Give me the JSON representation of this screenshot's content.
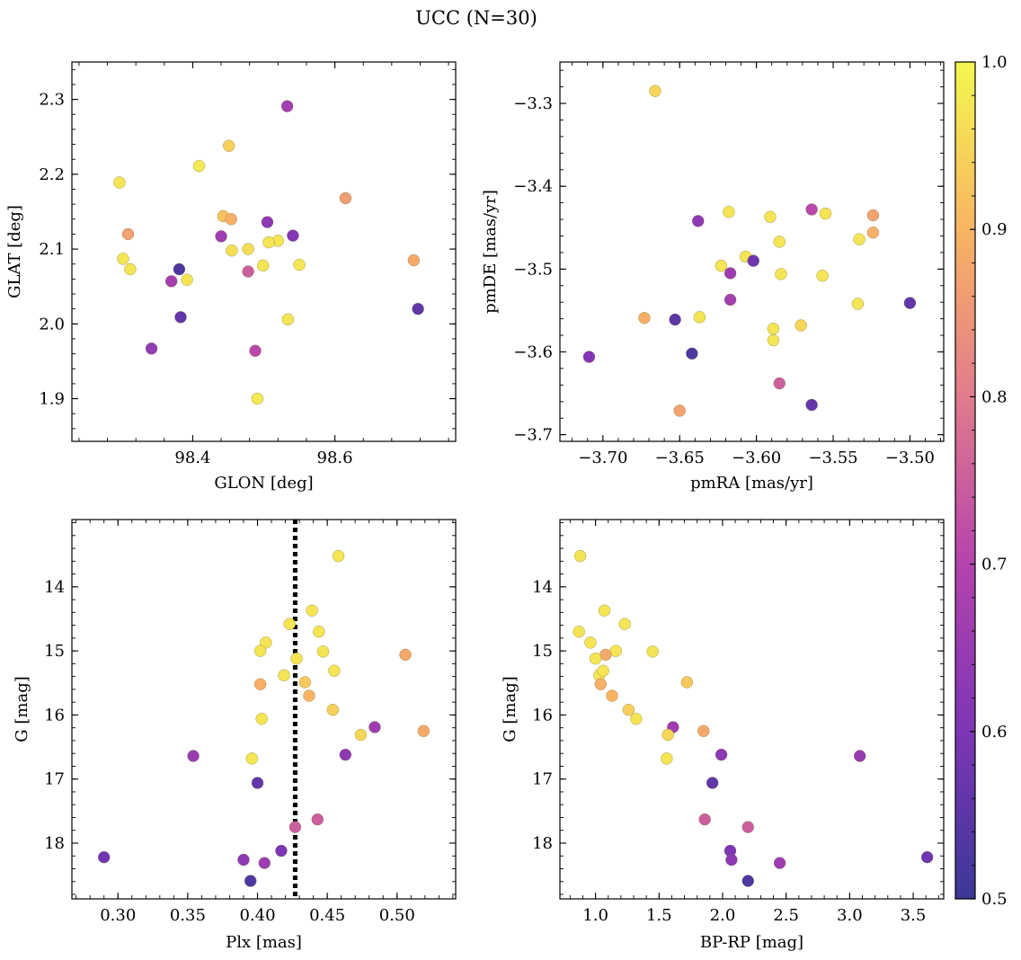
{
  "chart_data": [
    {
      "type": "scatter",
      "title": "UCC (N=30)",
      "xlabel": "GLON [deg]",
      "ylabel": "GLAT [deg]",
      "xlim": [
        98.23,
        98.77
      ],
      "ylim": [
        1.843,
        2.35
      ],
      "xticks": [
        98.4,
        98.6
      ],
      "xtick_labels": [
        "98.4",
        "98.6"
      ],
      "yticks": [
        1.9,
        2.0,
        2.1,
        2.2,
        2.3
      ],
      "ytick_labels": [
        "1.9",
        "2.0",
        "2.1",
        "2.2",
        "2.3"
      ],
      "x": [
        98.533,
        98.297,
        98.451,
        98.409,
        98.615,
        98.443,
        98.454,
        98.309,
        98.302,
        98.505,
        98.541,
        98.44,
        98.52,
        98.478,
        98.507,
        98.711,
        98.499,
        98.381,
        98.55,
        98.455,
        98.37,
        98.478,
        98.392,
        98.717,
        98.383,
        98.534,
        98.342,
        98.488,
        98.491,
        98.312
      ],
      "y": [
        2.291,
        2.189,
        2.238,
        2.211,
        2.168,
        2.144,
        2.14,
        2.12,
        2.087,
        2.136,
        2.118,
        2.117,
        2.111,
        2.1,
        2.109,
        2.085,
        2.078,
        2.073,
        2.079,
        2.098,
        2.057,
        2.07,
        2.059,
        2.02,
        2.009,
        2.006,
        1.967,
        1.964,
        1.9,
        2.073
      ],
      "color_values": [
        0.67,
        0.97,
        0.94,
        0.98,
        0.86,
        0.92,
        0.89,
        0.87,
        0.97,
        0.63,
        0.61,
        0.66,
        0.97,
        0.96,
        0.97,
        0.88,
        0.97,
        0.53,
        0.97,
        0.96,
        0.67,
        0.75,
        0.97,
        0.56,
        0.56,
        0.97,
        0.64,
        0.71,
        0.98,
        0.97
      ]
    },
    {
      "type": "scatter",
      "xlabel": "pmRA [mas/yr]",
      "ylabel": "pmDE [mas/yr]",
      "xlim": [
        -3.728,
        -3.478
      ],
      "ylim": [
        -3.708,
        -3.25
      ],
      "xticks": [
        -3.7,
        -3.65,
        -3.6,
        -3.55,
        -3.5
      ],
      "xtick_labels": [
        "−3.70",
        "−3.65",
        "−3.60",
        "−3.55",
        "−3.50"
      ],
      "yticks": [
        -3.3,
        -3.4,
        -3.5,
        -3.6,
        -3.7
      ],
      "ytick_labels": [
        "−3.3",
        "−3.4",
        "−3.5",
        "−3.6",
        "−3.7"
      ],
      "x": [
        -3.666,
        -3.564,
        -3.555,
        -3.618,
        -3.591,
        -3.638,
        -3.524,
        -3.524,
        -3.533,
        -3.585,
        -3.607,
        -3.623,
        -3.584,
        -3.617,
        -3.602,
        -3.557,
        -3.617,
        -3.5,
        -3.534,
        -3.673,
        -3.653,
        -3.637,
        -3.571,
        -3.589,
        -3.589,
        -3.642,
        -3.709,
        -3.585,
        -3.65,
        -3.564
      ],
      "y": [
        -3.285,
        -3.428,
        -3.433,
        -3.431,
        -3.437,
        -3.442,
        -3.435,
        -3.456,
        -3.464,
        -3.467,
        -3.485,
        -3.496,
        -3.506,
        -3.505,
        -3.49,
        -3.508,
        -3.537,
        -3.541,
        -3.542,
        -3.559,
        -3.561,
        -3.558,
        -3.568,
        -3.572,
        -3.586,
        -3.602,
        -3.606,
        -3.638,
        -3.671,
        -3.664
      ],
      "color_values": [
        0.95,
        0.71,
        0.97,
        0.97,
        0.97,
        0.63,
        0.87,
        0.89,
        0.97,
        0.97,
        0.97,
        0.97,
        0.97,
        0.66,
        0.58,
        0.97,
        0.67,
        0.56,
        0.97,
        0.89,
        0.55,
        0.97,
        0.95,
        0.97,
        0.97,
        0.53,
        0.61,
        0.75,
        0.87,
        0.56
      ]
    },
    {
      "type": "scatter",
      "xlabel": "Plx [mas]",
      "ylabel": "G [mag]",
      "xlim": [
        0.267,
        0.542
      ],
      "ylim": [
        18.87,
        12.95
      ],
      "yaxis_inverted": true,
      "xticks": [
        0.3,
        0.35,
        0.4,
        0.45,
        0.5
      ],
      "xtick_labels": [
        "0.30",
        "0.35",
        "0.40",
        "0.45",
        "0.50"
      ],
      "yticks": [
        14,
        15,
        16,
        17,
        18
      ],
      "ytick_labels": [
        "14",
        "15",
        "16",
        "17",
        "18"
      ],
      "vline": {
        "x": 0.427,
        "style": "dotted",
        "color": "#000000"
      },
      "x": [
        0.458,
        0.439,
        0.423,
        0.444,
        0.406,
        0.402,
        0.447,
        0.506,
        0.428,
        0.419,
        0.455,
        0.434,
        0.402,
        0.437,
        0.454,
        0.403,
        0.484,
        0.519,
        0.474,
        0.463,
        0.354,
        0.396,
        0.4,
        0.443,
        0.427,
        0.29,
        0.417,
        0.39,
        0.405,
        0.395
      ],
      "y": [
        13.52,
        14.37,
        14.58,
        14.7,
        14.87,
        15.0,
        15.01,
        15.06,
        15.12,
        15.38,
        15.31,
        15.49,
        15.52,
        15.7,
        15.92,
        16.06,
        16.19,
        16.25,
        16.31,
        16.62,
        16.64,
        16.68,
        17.06,
        17.63,
        17.75,
        18.22,
        18.12,
        18.26,
        18.31,
        18.59
      ],
      "color_values": [
        0.97,
        0.97,
        0.97,
        0.97,
        0.97,
        0.97,
        0.97,
        0.88,
        0.97,
        0.97,
        0.97,
        0.93,
        0.89,
        0.9,
        0.94,
        0.97,
        0.66,
        0.88,
        0.95,
        0.63,
        0.65,
        0.97,
        0.56,
        0.75,
        0.75,
        0.58,
        0.6,
        0.63,
        0.66,
        0.53
      ]
    },
    {
      "type": "scatter",
      "xlabel": "BP-RP [mag]",
      "ylabel": "G [mag]",
      "xlim": [
        0.72,
        3.74
      ],
      "ylim": [
        18.87,
        12.95
      ],
      "yaxis_inverted": true,
      "xticks": [
        1.0,
        1.5,
        2.0,
        2.5,
        3.0,
        3.5
      ],
      "xtick_labels": [
        "1.0",
        "1.5",
        "2.0",
        "2.5",
        "3.0",
        "3.5"
      ],
      "yticks": [
        14,
        15,
        16,
        17,
        18
      ],
      "ytick_labels": [
        "14",
        "15",
        "16",
        "17",
        "18"
      ],
      "x": [
        0.88,
        1.07,
        1.23,
        0.87,
        0.96,
        1.16,
        1.45,
        1.08,
        1.0,
        1.03,
        1.06,
        1.72,
        1.04,
        1.13,
        1.26,
        1.32,
        1.61,
        1.85,
        1.57,
        1.99,
        3.08,
        1.56,
        1.92,
        1.86,
        2.2,
        3.61,
        2.06,
        2.07,
        2.45,
        2.2
      ],
      "y": [
        13.52,
        14.37,
        14.58,
        14.7,
        14.87,
        15.0,
        15.01,
        15.06,
        15.12,
        15.38,
        15.31,
        15.49,
        15.52,
        15.7,
        15.92,
        16.06,
        16.19,
        16.25,
        16.31,
        16.62,
        16.64,
        16.68,
        17.06,
        17.63,
        17.75,
        18.22,
        18.12,
        18.26,
        18.31,
        18.59
      ],
      "color_values": [
        0.97,
        0.97,
        0.97,
        0.97,
        0.97,
        0.97,
        0.97,
        0.88,
        0.97,
        0.97,
        0.97,
        0.93,
        0.89,
        0.9,
        0.94,
        0.97,
        0.66,
        0.88,
        0.95,
        0.63,
        0.65,
        0.97,
        0.56,
        0.75,
        0.75,
        0.58,
        0.6,
        0.63,
        0.66,
        0.53
      ]
    }
  ],
  "colorbar": {
    "colormap": "plasma",
    "range": [
      0.5,
      1.0
    ],
    "ticks": [
      0.5,
      0.6,
      0.7,
      0.8,
      0.9,
      1.0
    ],
    "tick_labels": [
      "0.5",
      "0.6",
      "0.7",
      "0.8",
      "0.9",
      "1.0"
    ]
  },
  "colormap_stops": [
    [
      0.5,
      "#3b3897"
    ],
    [
      0.6,
      "#7d35b6"
    ],
    [
      0.7,
      "#b443ad"
    ],
    [
      0.8,
      "#e17b8c"
    ],
    [
      0.9,
      "#f9b463"
    ],
    [
      1.0,
      "#f3f84e"
    ]
  ],
  "marker_edge_color": "#6b6b2e"
}
